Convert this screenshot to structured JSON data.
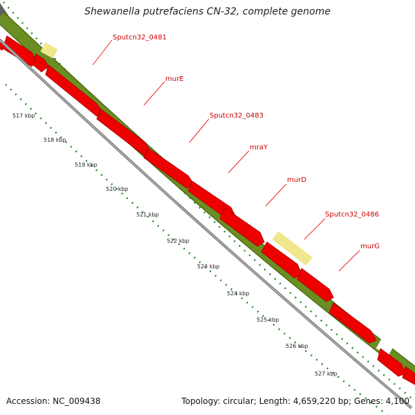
{
  "title": "Shewanella putrefaciens CN-32, complete genome",
  "accession": "Accession: NC_009438",
  "summary": "Topology: circular; Length: 4,659,220 bp; Genes: 4,100",
  "colors": {
    "forward_track": "#6b8e23",
    "forward_track_edge": "#4e6b12",
    "rna_highlight": "#f0e68c",
    "cds": "#ee0000",
    "cds_edge": "#b00000",
    "backbone": "#808080",
    "dots": "#228b22",
    "label_text": "#cc0000",
    "leader": "#ee2222"
  },
  "gene_labels": [
    "Sputcn32_0481",
    "murE",
    "Sputcn32_0483",
    "mraY",
    "murD",
    "Sputcn32_0486",
    "murG"
  ],
  "tick_labels": [
    "517 kbp",
    "518 kbp",
    "519 kbp",
    "520 kbp",
    "521 kbp",
    "522 kbp",
    "523 kbp",
    "524 kbp",
    "525 kbp",
    "526 kbp",
    "527 kbp"
  ]
}
